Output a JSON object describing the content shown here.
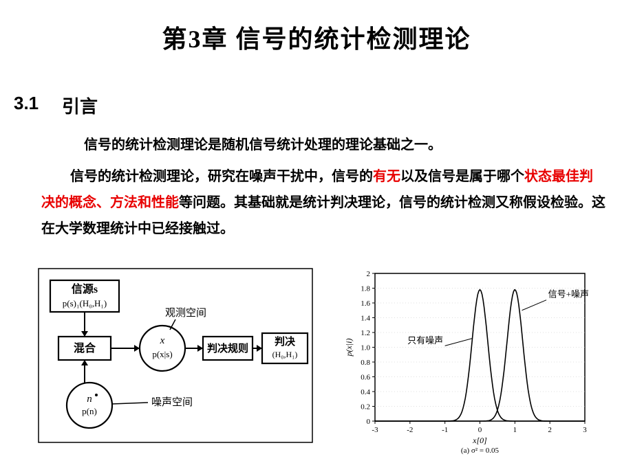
{
  "title": "第3章  信号的统计检测理论",
  "section": {
    "num": "3.1",
    "title": "引言"
  },
  "para1": "信号的统计检测理论是随机信号统计处理的理论基础之一。",
  "para2_a": "信号的统计检测理论，研究在噪声干扰中，信号的",
  "para2_red1": "有无",
  "para2_b": "以及信号是属于哪个",
  "para2_red2": "状态最佳判决的概念、方法和性能",
  "para2_c": "等问题。其基础就是统计判决理论，信号的统计检测又称假设检验。这在大学数理统计中已经接触过。",
  "left_diagram": {
    "source_box": {
      "l1": "信源s",
      "l2": "p(s)₁(H₀,H₁)"
    },
    "mix_box": "混合",
    "obs_circle": {
      "l1": "x",
      "l2": "p(x|s)"
    },
    "obs_label": "观测空间",
    "rule_box": "判决规则",
    "dec_box": {
      "l1": "判决",
      "l2": "(H₀,H₁)"
    },
    "noise_circle": {
      "l1": "n",
      "l2": "p(n)"
    },
    "noise_label": "噪声空间"
  },
  "right_chart": {
    "type": "line",
    "xlabel": "x[0]",
    "ylabel": "p(x|i)",
    "subtitle": "(a) σ² = 0.05",
    "xlim": [
      -3,
      3
    ],
    "xticks": [
      -3,
      -2,
      -1,
      0,
      1,
      2,
      3
    ],
    "ylim": [
      0,
      2
    ],
    "yticks": [
      0,
      0.2,
      0.4,
      0.6,
      0.8,
      1.0,
      1.2,
      1.4,
      1.6,
      1.8,
      2.0
    ],
    "curves": [
      {
        "label": "只有噪声",
        "mu": 0.0,
        "sigma": 0.224,
        "peak": 1.78
      },
      {
        "label": "信号+噪声",
        "mu": 1.0,
        "sigma": 0.224,
        "peak": 1.78
      }
    ],
    "line_color": "#000000",
    "grid_color": "#bfbfbf",
    "background": "#ffffff"
  },
  "colors": {
    "text": "#000000",
    "highlight": "#e80000"
  }
}
